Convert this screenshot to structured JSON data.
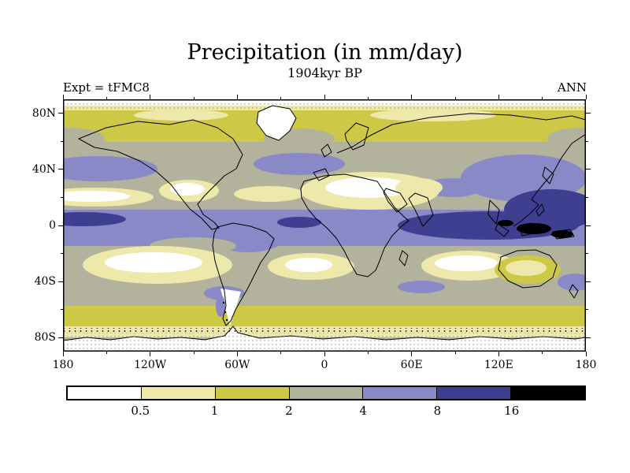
{
  "header": {
    "title": "Precipitation (in mm/day)",
    "subtitle": "1904kyr BP",
    "experiment_label": "Expt = tFMC8",
    "season_label": "ANN"
  },
  "axes": {
    "y_ticks": [
      {
        "label": "80N",
        "lat": 80
      },
      {
        "label": "40N",
        "lat": 40
      },
      {
        "label": "0",
        "lat": 0
      },
      {
        "label": "40S",
        "lat": -40
      },
      {
        "label": "80S",
        "lat": -80
      }
    ],
    "x_ticks": [
      {
        "label": "180",
        "lon": -180
      },
      {
        "label": "120W",
        "lon": -120
      },
      {
        "label": "60W",
        "lon": -60
      },
      {
        "label": "0",
        "lon": 0
      },
      {
        "label": "60E",
        "lon": 60
      },
      {
        "label": "120E",
        "lon": 120
      },
      {
        "label": "180",
        "lon": 180
      }
    ]
  },
  "legend": {
    "tick_labels": [
      "0.5",
      "1",
      "2",
      "4",
      "8",
      "16"
    ],
    "colors": [
      "#ffffff",
      "#eee8aa",
      "#cdc846",
      "#b3b39d",
      "#8989c8",
      "#3f3f92",
      "#000000"
    ],
    "bin_meaning": [
      "<0.5",
      "0.5-1",
      "1-2",
      "2-4",
      "4-8",
      "8-16",
      ">16"
    ]
  },
  "chart_data": {
    "type": "heatmap",
    "title": "Precipitation (in mm/day)",
    "subtitle": "1904kyr BP",
    "annotations": [
      "Expt = tFMC8",
      "ANN"
    ],
    "units": "mm/day",
    "projection": "equirectangular world map",
    "lon_range": [
      -180,
      180
    ],
    "lat_range": [
      -90,
      90
    ],
    "contour_levels": [
      0.5,
      1,
      2,
      4,
      8,
      16
    ],
    "palette": [
      "#ffffff",
      "#eee8aa",
      "#cdc846",
      "#b3b39d",
      "#8989c8",
      "#3f3f92",
      "#000000"
    ],
    "features": [
      {
        "region": "Equatorial ITCZ band ~10S-10N, all longitudes",
        "value_mm_day": "4-8"
      },
      {
        "region": "Indian Ocean / Maritime Continent / West Pacific warm pool",
        "value_mm_day": "8-16, local >16 (black) over Indonesia and New Guinea"
      },
      {
        "region": "Western equatorial Pacific near 180",
        "value_mm_day": "8-16"
      },
      {
        "region": "Atlantic ITCZ off NE South America",
        "value_mm_day": "8-16"
      },
      {
        "region": "East Asia / NW Pacific monsoon region ~20-45N",
        "value_mm_day": "4-8"
      },
      {
        "region": "North Pacific and North Atlantic storm tracks ~40-50N",
        "value_mm_day": "4-8"
      },
      {
        "region": "Tibetan Plateau / Himalaya",
        "value_mm_day": "4-8"
      },
      {
        "region": "Sahara and Arabia",
        "value_mm_day": "<0.5-1 (white/pale)"
      },
      {
        "region": "Subtropical North Pacific and SW North America",
        "value_mm_day": "<0.5-1"
      },
      {
        "region": "Southeast Pacific subtropical high",
        "value_mm_day": "<0.5-1 (large white oval)"
      },
      {
        "region": "South Atlantic subtropical high",
        "value_mm_day": "<0.5-1 (white oval)"
      },
      {
        "region": "Southern Indian Ocean east of Madagascar",
        "value_mm_day": "<0.5-1 (white oval)"
      },
      {
        "region": "Australia interior",
        "value_mm_day": "0.5-2"
      },
      {
        "region": "Mid-latitude oceans background",
        "value_mm_day": "2-4 (gray)"
      },
      {
        "region": "Subarctic land band ~55-75N and circumpolar band ~55-65S",
        "value_mm_day": "1-2 (olive)"
      },
      {
        "region": "Polar caps / Antarctica / Greenland",
        "value_mm_day": "<0.5-1 (stippled)"
      }
    ]
  }
}
